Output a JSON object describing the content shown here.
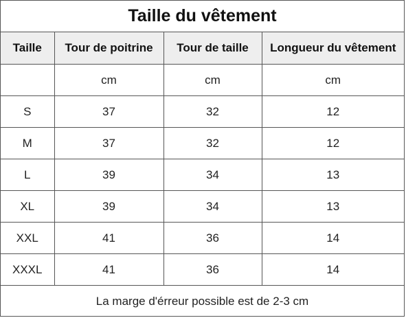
{
  "title": "Taille du vêtement",
  "headers": [
    "Taille",
    "Tour de poitrine",
    "Tour de taille",
    "Longueur du vêtement"
  ],
  "units": [
    "",
    "cm",
    "cm",
    "cm"
  ],
  "rows": [
    [
      "S",
      "37",
      "32",
      "12"
    ],
    [
      "M",
      "37",
      "32",
      "12"
    ],
    [
      "L",
      "39",
      "34",
      "13"
    ],
    [
      "XL",
      "39",
      "34",
      "13"
    ],
    [
      "XXL",
      "41",
      "36",
      "14"
    ],
    [
      "XXXL",
      "41",
      "36",
      "14"
    ]
  ],
  "footer": "La marge d'érreur possible est de 2-3 cm",
  "colors": {
    "header_background": "#eeeeee",
    "border": "#555555"
  }
}
